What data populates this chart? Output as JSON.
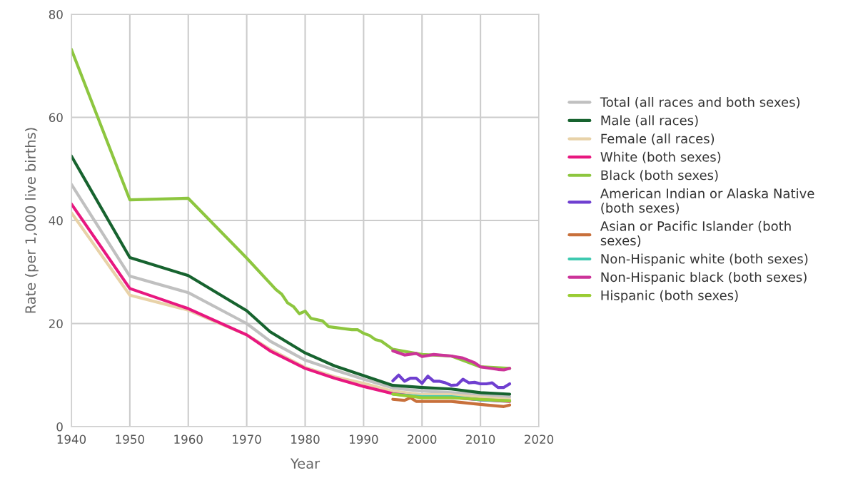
{
  "chart_data": {
    "type": "line",
    "xlabel": "Year",
    "ylabel": "Rate (per 1,000 live births)",
    "xlim": [
      1940,
      2020
    ],
    "xticks": [
      1940,
      1950,
      1960,
      1970,
      1980,
      1990,
      2000,
      2010,
      2020
    ],
    "ylim": [
      0,
      80
    ],
    "yticks": [
      0,
      20,
      40,
      60,
      80
    ],
    "grid": true,
    "legend": "right",
    "marker": "none",
    "line_style": "solid",
    "series": [
      {
        "name": "Total (all races and both sexes)",
        "color": "#c0c0c0",
        "x": [
          1940,
          1950,
          1960,
          1970,
          1974,
          1980,
          1985,
          1990,
          1995,
          2000,
          2005,
          2010,
          2015
        ],
        "values": [
          47.0,
          29.2,
          26.0,
          20.0,
          16.6,
          12.9,
          11.0,
          9.2,
          7.5,
          6.9,
          6.6,
          6.2,
          5.8
        ]
      },
      {
        "name": "Male (all races)",
        "color": "#17632f",
        "x": [
          1940,
          1950,
          1960,
          1970,
          1974,
          1980,
          1985,
          1990,
          1995,
          2000,
          2005,
          2010,
          2015
        ],
        "values": [
          52.5,
          32.8,
          29.3,
          22.5,
          18.4,
          14.3,
          11.8,
          9.9,
          8.0,
          7.6,
          7.3,
          6.6,
          6.3
        ]
      },
      {
        "name": "Female (all races)",
        "color": "#e8d2a8",
        "x": [
          1940,
          1950,
          1960,
          1970,
          1974,
          1980,
          1985,
          1990,
          1995,
          2000,
          2005,
          2010,
          2015
        ],
        "values": [
          41.5,
          25.5,
          22.6,
          17.8,
          15.0,
          11.5,
          9.7,
          8.4,
          6.9,
          6.2,
          6.2,
          5.7,
          5.3
        ]
      },
      {
        "name": "White (both sexes)",
        "color": "#e8177f",
        "x": [
          1940,
          1950,
          1960,
          1970,
          1974,
          1980,
          1985,
          1990,
          1995,
          2000,
          2005,
          2010,
          2015
        ],
        "values": [
          43.2,
          26.8,
          22.9,
          17.8,
          14.7,
          11.3,
          9.4,
          7.8,
          6.4,
          5.7,
          5.7,
          5.2,
          4.9
        ]
      },
      {
        "name": "Black (both sexes)",
        "color": "#8dc63f",
        "x": [
          1940,
          1950,
          1960,
          1970,
          1975,
          1976,
          1977,
          1978,
          1979,
          1980,
          1981,
          1983,
          1984,
          1988,
          1989,
          1990,
          1991,
          1992,
          1993,
          1995,
          2000,
          2005,
          2010,
          2015
        ],
        "values": [
          73.2,
          44.0,
          44.3,
          32.7,
          26.6,
          25.7,
          24.0,
          23.3,
          21.9,
          22.4,
          21.0,
          20.5,
          19.4,
          18.8,
          18.8,
          18.1,
          17.7,
          16.9,
          16.6,
          15.0,
          14.0,
          13.7,
          11.6,
          11.3
        ]
      },
      {
        "name": "American Indian or Alaska Native (both sexes)",
        "color": "#6f3fd0",
        "x": [
          1995,
          1996,
          1997,
          1998,
          1999,
          2000,
          2001,
          2002,
          2003,
          2004,
          2005,
          2006,
          2007,
          2008,
          2009,
          2010,
          2011,
          2012,
          2013,
          2014,
          2015
        ],
        "values": [
          8.9,
          10.0,
          8.8,
          9.4,
          9.4,
          8.4,
          9.8,
          8.8,
          8.8,
          8.5,
          8.0,
          8.1,
          9.2,
          8.5,
          8.6,
          8.3,
          8.3,
          8.5,
          7.6,
          7.6,
          8.3
        ]
      },
      {
        "name": "Asian or Pacific Islander (both sexes)",
        "color": "#c8703b",
        "x": [
          1995,
          1997,
          1998,
          1999,
          2000,
          2005,
          2010,
          2014,
          2015
        ],
        "values": [
          5.3,
          5.1,
          5.6,
          4.9,
          4.9,
          4.9,
          4.3,
          3.9,
          4.2
        ]
      },
      {
        "name": "Non-Hispanic white (both sexes)",
        "color": "#3ec9b0",
        "x": [
          1995,
          2000,
          2005,
          2010,
          2015
        ],
        "values": [
          6.3,
          5.8,
          5.8,
          5.2,
          5.0
        ]
      },
      {
        "name": "Non-Hispanic black (both sexes)",
        "color": "#cc3399",
        "x": [
          1995,
          1997,
          1999,
          2000,
          2002,
          2005,
          2007,
          2009,
          2010,
          2013,
          2014,
          2015
        ],
        "values": [
          14.7,
          13.9,
          14.2,
          13.6,
          14.0,
          13.7,
          13.3,
          12.4,
          11.6,
          11.1,
          11.0,
          11.3
        ]
      },
      {
        "name": "Hispanic (both sexes)",
        "color": "#99cc33",
        "x": [
          1995,
          2000,
          2005,
          2010,
          2015
        ],
        "values": [
          6.3,
          5.6,
          5.6,
          5.3,
          5.0
        ]
      }
    ]
  }
}
